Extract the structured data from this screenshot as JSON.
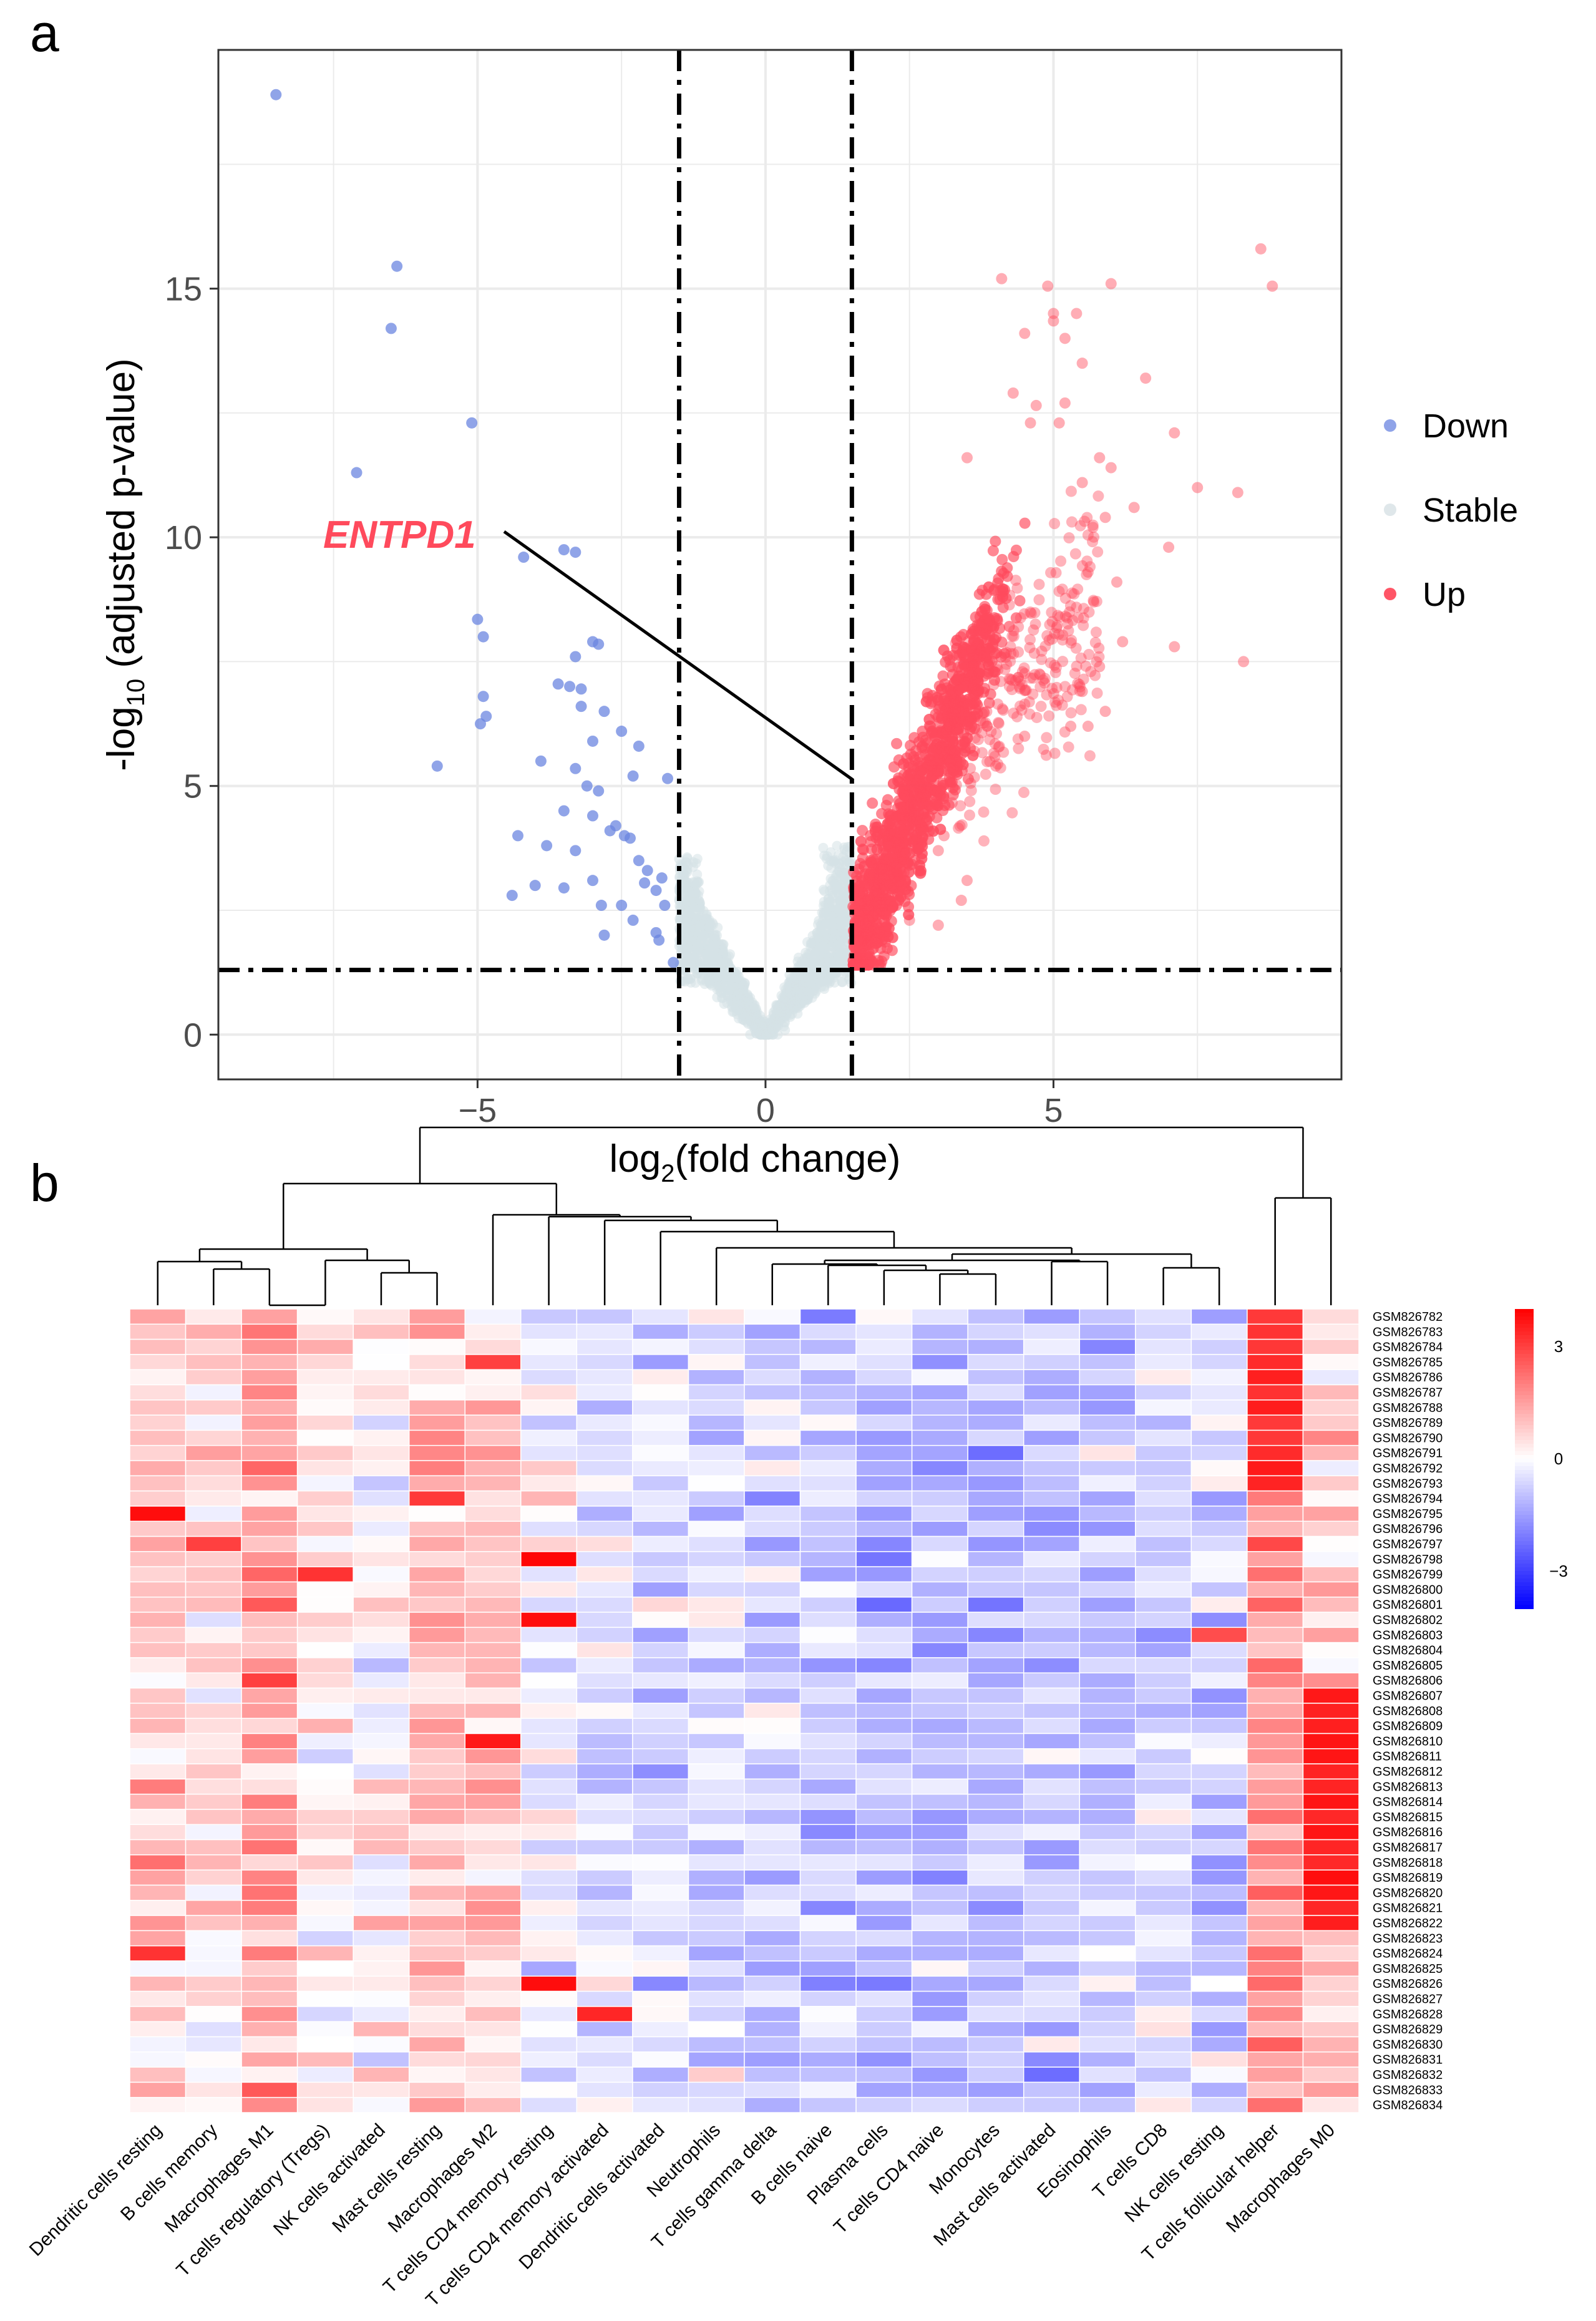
{
  "panel_a_label": "a",
  "panel_b_label": "b",
  "chart_data": [
    {
      "type": "scatter",
      "title": "",
      "xlabel": "log2(fold change)",
      "ylabel": "-log10 (adjusted p-value)",
      "xlim": [
        -9.5,
        10
      ],
      "ylim": [
        -0.9,
        19.8
      ],
      "xticks": [
        -5,
        0,
        5
      ],
      "yticks": [
        0,
        5,
        10,
        15
      ],
      "xtick_labels": [
        "−5",
        "0",
        "5"
      ],
      "ytick_labels": [
        "0",
        "5",
        "10",
        "15"
      ],
      "thresholds": {
        "logfc": [
          -1.5,
          1.5
        ],
        "neglog10p": 1.3
      },
      "annotation": {
        "label": "ENTPD1",
        "x": 1.6,
        "y": 4.9
      },
      "legend": {
        "position": "right",
        "entries": [
          {
            "name": "Down",
            "color": "#8fa3e8"
          },
          {
            "name": "Stable",
            "color": "#dfe7ea"
          },
          {
            "name": "Up",
            "color": "#ff5566"
          }
        ]
      },
      "series": [
        {
          "name": "Down",
          "color": "#6b86e0",
          "points": [
            [
              -8.5,
              18.9
            ],
            [
              -6.4,
              15.45
            ],
            [
              -6.5,
              14.2
            ],
            [
              -7.1,
              11.3
            ],
            [
              -5.1,
              12.3
            ],
            [
              -4.2,
              9.6
            ],
            [
              -3.5,
              9.75
            ],
            [
              -3.3,
              9.7
            ],
            [
              -5.0,
              8.35
            ],
            [
              -4.9,
              8.0
            ],
            [
              -3.0,
              7.9
            ],
            [
              -2.9,
              7.85
            ],
            [
              -3.3,
              7.6
            ],
            [
              -3.4,
              7.0
            ],
            [
              -3.6,
              7.05
            ],
            [
              -3.2,
              6.95
            ],
            [
              -4.9,
              6.8
            ],
            [
              -4.95,
              6.25
            ],
            [
              -4.85,
              6.4
            ],
            [
              -3.2,
              6.6
            ],
            [
              -2.8,
              6.5
            ],
            [
              -2.5,
              6.1
            ],
            [
              -3.0,
              5.9
            ],
            [
              -2.2,
              5.8
            ],
            [
              -3.9,
              5.5
            ],
            [
              -3.3,
              5.35
            ],
            [
              -2.3,
              5.2
            ],
            [
              -1.7,
              5.15
            ],
            [
              -5.7,
              5.4
            ],
            [
              -3.1,
              5.0
            ],
            [
              -2.9,
              4.9
            ],
            [
              -3.5,
              4.5
            ],
            [
              -3.0,
              4.4
            ],
            [
              -2.6,
              4.2
            ],
            [
              -2.45,
              4.0
            ],
            [
              -2.35,
              3.95
            ],
            [
              -2.7,
              4.1
            ],
            [
              -4.3,
              4.0
            ],
            [
              -3.8,
              3.8
            ],
            [
              -3.3,
              3.7
            ],
            [
              -2.2,
              3.5
            ],
            [
              -2.05,
              3.3
            ],
            [
              -1.8,
              3.15
            ],
            [
              -2.1,
              3.05
            ],
            [
              -1.9,
              2.9
            ],
            [
              -1.75,
              2.6
            ],
            [
              -2.5,
              2.6
            ],
            [
              -2.3,
              2.3
            ],
            [
              -1.9,
              2.05
            ],
            [
              -2.85,
              2.6
            ],
            [
              -3.0,
              3.1
            ],
            [
              -4.0,
              3.0
            ],
            [
              -4.4,
              2.8
            ],
            [
              -3.5,
              2.95
            ],
            [
              -2.8,
              2.0
            ],
            [
              -1.85,
              1.9
            ],
            [
              -1.6,
              1.45
            ]
          ]
        },
        {
          "name": "Up",
          "color": "#ff4a5c",
          "points": [
            [
              4.1,
              15.2
            ],
            [
              4.9,
              15.05
            ],
            [
              5.0,
              14.5
            ],
            [
              5.0,
              14.35
            ],
            [
              5.4,
              14.5
            ],
            [
              6.0,
              15.1
            ],
            [
              5.2,
              14.0
            ],
            [
              5.5,
              13.5
            ],
            [
              4.5,
              14.1
            ],
            [
              4.3,
              12.9
            ],
            [
              4.7,
              12.65
            ],
            [
              5.2,
              12.7
            ],
            [
              5.1,
              12.3
            ],
            [
              6.6,
              13.2
            ],
            [
              7.1,
              12.1
            ],
            [
              8.6,
              15.8
            ],
            [
              8.8,
              15.05
            ],
            [
              7.5,
              11.0
            ],
            [
              8.2,
              10.9
            ],
            [
              7.0,
              9.8
            ],
            [
              7.1,
              7.8
            ],
            [
              8.3,
              7.5
            ],
            [
              6.0,
              11.4
            ],
            [
              5.8,
              11.6
            ],
            [
              5.5,
              11.1
            ],
            [
              4.6,
              12.3
            ],
            [
              3.5,
              11.6
            ],
            [
              6.4,
              10.6
            ],
            [
              5.9,
              10.4
            ],
            [
              6.1,
              9.1
            ],
            [
              5.6,
              9.3
            ],
            [
              5.7,
              8.7
            ],
            [
              6.2,
              7.9
            ],
            [
              5.8,
              7.4
            ],
            [
              5.5,
              6.9
            ],
            [
              5.6,
              6.2
            ],
            [
              5.3,
              6.2
            ],
            [
              5.9,
              6.5
            ],
            [
              4.5,
              6.0
            ],
            [
              4.0,
              5.4
            ],
            [
              3.1,
              4.0
            ],
            [
              3.0,
              3.7
            ],
            [
              2.3,
              3.2
            ],
            [
              3.4,
              2.7
            ],
            [
              2.5,
              2.3
            ],
            [
              3.0,
              2.2
            ],
            [
              3.5,
              3.1
            ],
            [
              1.7,
              1.9
            ],
            [
              1.6,
              1.55
            ]
          ]
        }
      ],
      "cloud_note": "dense clusters rendered procedurally from the same ranges"
    },
    {
      "type": "heatmap",
      "colorbar": {
        "ticks": [
          3,
          0,
          -3
        ],
        "tick_labels": [
          "3",
          "0",
          "−3"
        ],
        "low": "#0000ff",
        "mid": "#ffffff",
        "high": "#ff0000",
        "range": [
          -4,
          4
        ]
      },
      "columns": [
        "Dendritic cells resting",
        "B cells memory",
        "Macrophages M1",
        "T cells regulatory (Tregs)",
        "NK cells activated",
        "Mast cells resting",
        "Macrophages M2",
        "T cells CD4 memory resting",
        "T cells CD4 memory activated",
        "Dendritic cells activated",
        "Neutrophils",
        "T cells gamma delta",
        "B cells naive",
        "Plasma cells",
        "T cells CD4 naive",
        "Monocytes",
        "Mast cells activated",
        "Eosinophils",
        "T cells CD8",
        "NK cells resting",
        "T cells follicular helper",
        "Macrophages M0"
      ],
      "rows": [
        "GSM826782",
        "GSM826783",
        "GSM826784",
        "GSM826785",
        "GSM826786",
        "GSM826787",
        "GSM826788",
        "GSM826789",
        "GSM826790",
        "GSM826791",
        "GSM826792",
        "GSM826793",
        "GSM826794",
        "GSM826795",
        "GSM826796",
        "GSM826797",
        "GSM826798",
        "GSM826799",
        "GSM826800",
        "GSM826801",
        "GSM826802",
        "GSM826803",
        "GSM826804",
        "GSM826805",
        "GSM826806",
        "GSM826807",
        "GSM826808",
        "GSM826809",
        "GSM826810",
        "GSM826811",
        "GSM826812",
        "GSM826813",
        "GSM826814",
        "GSM826815",
        "GSM826816",
        "GSM826817",
        "GSM826818",
        "GSM826819",
        "GSM826820",
        "GSM826821",
        "GSM826822",
        "GSM826823",
        "GSM826824",
        "GSM826825",
        "GSM826826",
        "GSM826827",
        "GSM826828",
        "GSM826829",
        "GSM826830",
        "GSM826831",
        "GSM826832",
        "GSM826833",
        "GSM826834"
      ],
      "column_base": [
        0.8,
        0.5,
        1.4,
        0.3,
        0.2,
        0.9,
        1.0,
        -0.2,
        -0.4,
        -0.6,
        -0.5,
        -0.7,
        -0.9,
        -1.0,
        -1.0,
        -1.0,
        -0.9,
        -0.9,
        -0.6,
        -0.6,
        2.5,
        1.6
      ],
      "hotspots": [
        {
          "col": 0,
          "row": 13,
          "v": 3.8
        },
        {
          "col": 0,
          "row": 42,
          "v": 3.2
        },
        {
          "col": 1,
          "row": 15,
          "v": 3.0
        },
        {
          "col": 3,
          "row": 17,
          "v": 3.2
        },
        {
          "col": 5,
          "row": 12,
          "v": 3.1
        },
        {
          "col": 6,
          "row": 3,
          "v": 3.0
        },
        {
          "col": 6,
          "row": 28,
          "v": 3.6
        },
        {
          "col": 7,
          "row": 16,
          "v": 3.9
        },
        {
          "col": 7,
          "row": 20,
          "v": 3.8
        },
        {
          "col": 7,
          "row": 44,
          "v": 3.8
        },
        {
          "col": 8,
          "row": 46,
          "v": 3.4
        },
        {
          "col": 2,
          "row": 24,
          "v": 3.0
        },
        {
          "col": 19,
          "row": 21,
          "v": 2.8
        }
      ]
    }
  ]
}
